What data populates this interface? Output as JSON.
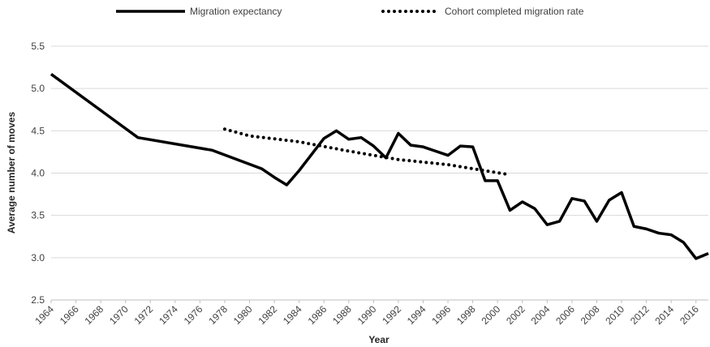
{
  "chart_data": {
    "type": "line",
    "x_label": "Year",
    "y_label": "Average number of moves",
    "xlim": [
      1964,
      2017
    ],
    "xticks": [
      1964,
      1966,
      1968,
      1970,
      1972,
      1974,
      1976,
      1978,
      1980,
      1982,
      1984,
      1986,
      1988,
      1990,
      1992,
      1994,
      1996,
      1998,
      2000,
      2002,
      2004,
      2006,
      2008,
      2010,
      2012,
      2014,
      2016
    ],
    "ylim": [
      2.5,
      5.5
    ],
    "yticks": [
      2.5,
      {
        "value": 3,
        "label": "3.0"
      },
      3.5,
      {
        "value": 4,
        "label": "4.0"
      },
      4.5,
      {
        "value": 5,
        "label": "5.0"
      },
      5.5
    ],
    "grid": true,
    "series": [
      {
        "name": "Migration expectancy",
        "color": "#000000",
        "style": "solid",
        "x": [
          1964,
          1971,
          1977,
          1981,
          1982,
          1983,
          1984,
          1985,
          1986,
          1987,
          1988,
          1989,
          1990,
          1991,
          1992,
          1993,
          1994,
          1995,
          1996,
          1997,
          1998,
          1999,
          2000,
          2001,
          2002,
          2003,
          2004,
          2005,
          2006,
          2007,
          2008,
          2009,
          2010,
          2011,
          2012,
          2013,
          2014,
          2015,
          2016,
          2017
        ],
        "values": [
          5.17,
          4.42,
          4.27,
          4.05,
          3.95,
          3.86,
          4.03,
          4.22,
          4.41,
          4.5,
          4.4,
          4.42,
          4.32,
          4.18,
          4.47,
          4.33,
          4.31,
          4.26,
          4.21,
          4.32,
          4.31,
          3.91,
          3.91,
          3.56,
          3.66,
          3.58,
          3.39,
          3.43,
          3.7,
          3.67,
          3.43,
          3.68,
          3.77,
          3.37,
          3.34,
          3.29,
          3.27,
          3.18,
          2.99,
          3.05
        ]
      },
      {
        "name": "Cohort completed migration rate",
        "color": "#000000",
        "style": "dotted",
        "x": [
          1978,
          1980,
          1984,
          1988,
          1992,
          1996,
          2001
        ],
        "values": [
          4.52,
          4.44,
          4.37,
          4.26,
          4.16,
          4.1,
          3.98
        ]
      }
    ]
  }
}
